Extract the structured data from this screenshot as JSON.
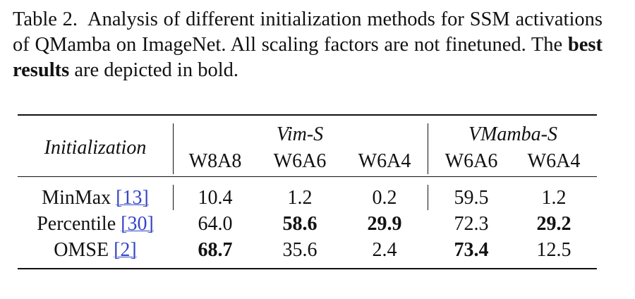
{
  "caption": {
    "label": "Table 2.",
    "text": "Analysis of different initialization methods for SSM activations of QMamba on ImageNet. All scaling factors are not finetuned. The",
    "bold": "best results",
    "end": "are depicted in bold."
  },
  "table": {
    "row_header": "Initialization",
    "groups": [
      "Vim-S",
      "VMamba-S"
    ],
    "columns": [
      "W8A8",
      "W6A6",
      "W6A4",
      "W6A6",
      "W6A4"
    ],
    "rows": [
      {
        "name": "MinMax",
        "cite": "[13]",
        "values": [
          "10.4",
          "1.2",
          "0.2",
          "59.5",
          "1.2"
        ],
        "bold": [
          false,
          false,
          false,
          false,
          false
        ]
      },
      {
        "name": "Percentile",
        "cite": "[30]",
        "values": [
          "64.0",
          "58.6",
          "29.9",
          "72.3",
          "29.2"
        ],
        "bold": [
          false,
          true,
          true,
          false,
          true
        ]
      },
      {
        "name": "OMSE",
        "cite": "[2]",
        "values": [
          "68.7",
          "35.6",
          "2.4",
          "73.4",
          "12.5"
        ],
        "bold": [
          true,
          false,
          false,
          true,
          false
        ]
      }
    ]
  }
}
